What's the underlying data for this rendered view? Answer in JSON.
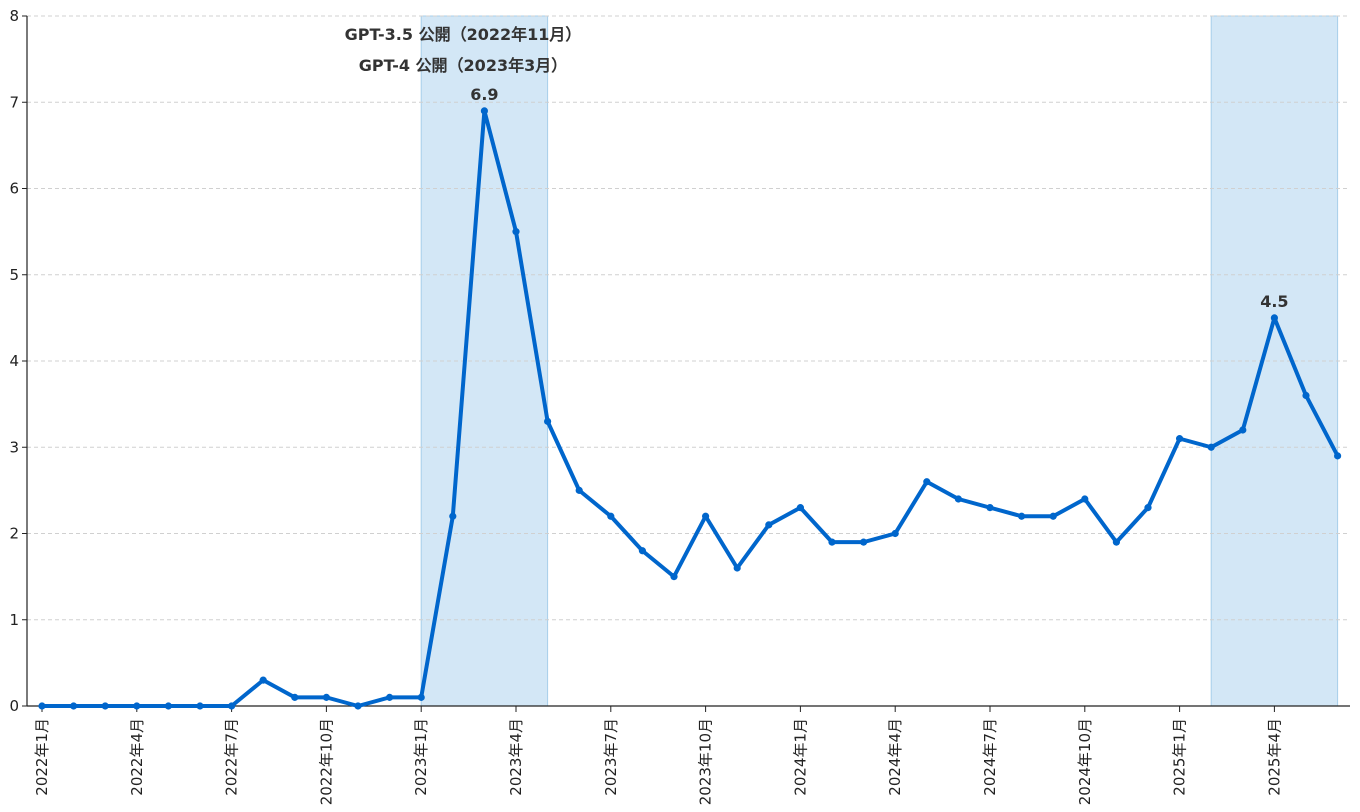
{
  "chart_data": {
    "type": "line",
    "x": [
      "2022-01",
      "2022-02",
      "2022-03",
      "2022-04",
      "2022-05",
      "2022-06",
      "2022-07",
      "2022-08",
      "2022-09",
      "2022-10",
      "2022-11",
      "2022-12",
      "2023-01",
      "2023-02",
      "2023-03",
      "2023-04",
      "2023-05",
      "2023-06",
      "2023-07",
      "2023-08",
      "2023-09",
      "2023-10",
      "2023-11",
      "2023-12",
      "2024-01",
      "2024-02",
      "2024-03",
      "2024-04",
      "2024-05",
      "2024-06",
      "2024-07",
      "2024-08",
      "2024-09",
      "2024-10",
      "2024-11",
      "2024-12",
      "2025-01",
      "2025-02",
      "2025-03",
      "2025-04",
      "2025-05",
      "2025-06"
    ],
    "series": [
      {
        "values": [
          0,
          0,
          0,
          0,
          0,
          0,
          0,
          0.3,
          0.1,
          0.1,
          0,
          0.1,
          0.1,
          2.2,
          6.9,
          5.5,
          3.3,
          2.5,
          2.2,
          1.8,
          1.5,
          2.2,
          1.6,
          2.1,
          2.3,
          1.9,
          1.9,
          2.0,
          2.6,
          2.4,
          2.3,
          2.2,
          2.2,
          2.4,
          1.9,
          2.3,
          3.1,
          3.0,
          3.2,
          4.5,
          3.6,
          2.9
        ]
      }
    ],
    "x_tick_labels": [
      {
        "x": "2022-01",
        "label": "2022年1月"
      },
      {
        "x": "2022-04",
        "label": "2022年4月"
      },
      {
        "x": "2022-07",
        "label": "2022年7月"
      },
      {
        "x": "2022-10",
        "label": "2022年10月"
      },
      {
        "x": "2023-01",
        "label": "2023年1月"
      },
      {
        "x": "2023-04",
        "label": "2023年4月"
      },
      {
        "x": "2023-07",
        "label": "2023年7月"
      },
      {
        "x": "2023-10",
        "label": "2023年10月"
      },
      {
        "x": "2024-01",
        "label": "2024年1月"
      },
      {
        "x": "2024-04",
        "label": "2024年4月"
      },
      {
        "x": "2024-07",
        "label": "2024年7月"
      },
      {
        "x": "2024-10",
        "label": "2024年10月"
      },
      {
        "x": "2025-01",
        "label": "2025年1月"
      },
      {
        "x": "2025-04",
        "label": "2025年4月"
      }
    ],
    "y_ticks": [
      "0",
      "1",
      "2",
      "3",
      "4",
      "5",
      "6",
      "7",
      "8"
    ],
    "ylim": [
      0,
      8
    ],
    "grid": "horizontal-dashed",
    "shaded_ranges": [
      {
        "from": "2023-01",
        "to": "2023-05"
      },
      {
        "from": "2025-02",
        "to": "2025-06"
      }
    ],
    "annotations": [
      "GPT-3.5 公開（2022年11月）",
      "GPT-4 公開（2023年3月）"
    ],
    "data_labels": [
      {
        "x": "2023-03",
        "text": "6.9"
      },
      {
        "x": "2025-04",
        "text": "4.5"
      }
    ],
    "colors": {
      "line": "#0066cc",
      "shade_fill": "#d3e7f6",
      "shade_stroke": "#a8cfea",
      "axis": "#222222",
      "grid": "#d0d0d0"
    }
  }
}
